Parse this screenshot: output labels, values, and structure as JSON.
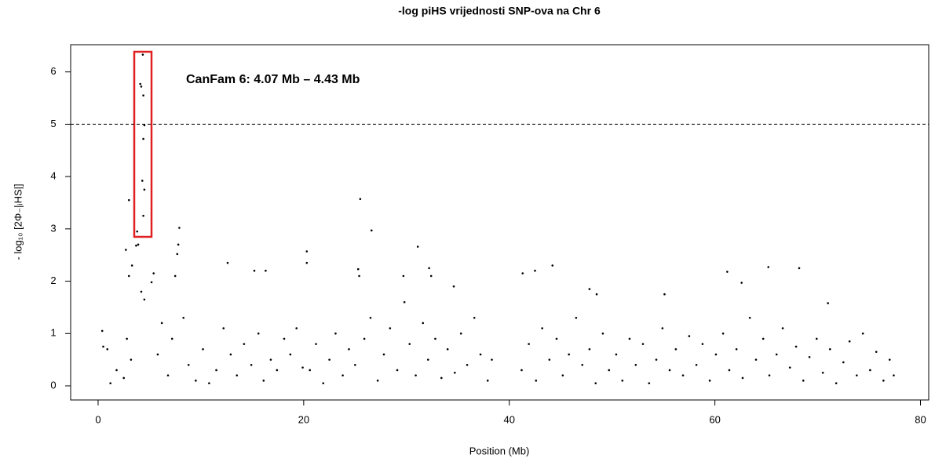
{
  "chart_data": {
    "type": "scatter",
    "title": "-log piHS vrijednosti SNP-ova na Chr 6",
    "xlabel": "Position (Mb)",
    "ylabel": "- log₁₀ [2Φ₋|ᵢHS|]",
    "annotation": "CanFam 6: 4.07 Mb – 4.43 Mb",
    "color": "#000000",
    "threshold": 5,
    "xlim": [
      -2.67,
      80.8
    ],
    "ylim": [
      -0.27,
      6.52
    ],
    "xticks": [
      0,
      20,
      40,
      60,
      80
    ],
    "yticks": [
      0,
      1,
      2,
      3,
      4,
      5,
      6
    ],
    "x": [
      4.35,
      4.1,
      4.2,
      4.4,
      4.5,
      4.4,
      4.3,
      4.5,
      4.4,
      3.0,
      3.8,
      3.7,
      3.9,
      2.7,
      3.3,
      3.0,
      7.9,
      7.8,
      7.7,
      25.5,
      26.6,
      31.1,
      20.3,
      20.3,
      12.6,
      15.2,
      16.3,
      32.2,
      32.4,
      25.3,
      25.4,
      41.3,
      42.5,
      44.2,
      61.2,
      65.2,
      68.2,
      62.6,
      5.4,
      5.2,
      7.5,
      4.2,
      4.5,
      29.7,
      34.6,
      47.8,
      55.1,
      48.5,
      71.0,
      0.4,
      0.5,
      0.9,
      1.2,
      1.8,
      2.5,
      2.8,
      3.2,
      5.8,
      6.2,
      6.8,
      7.2,
      8.3,
      8.8,
      9.5,
      10.2,
      10.8,
      11.5,
      12.2,
      12.9,
      13.5,
      14.2,
      14.9,
      15.6,
      16.1,
      16.8,
      17.4,
      18.1,
      18.7,
      19.3,
      19.9,
      20.6,
      21.2,
      21.9,
      22.5,
      23.1,
      23.8,
      24.4,
      25.0,
      25.9,
      26.5,
      27.2,
      27.8,
      28.4,
      29.1,
      29.8,
      30.3,
      30.9,
      31.6,
      32.1,
      32.8,
      33.4,
      34.0,
      34.7,
      35.3,
      35.9,
      36.6,
      37.2,
      37.9,
      38.3,
      41.2,
      41.9,
      42.6,
      43.2,
      43.9,
      44.6,
      45.2,
      45.8,
      46.5,
      47.1,
      47.8,
      48.4,
      49.1,
      49.7,
      50.4,
      51.0,
      51.7,
      52.3,
      53.0,
      53.6,
      54.3,
      54.9,
      55.6,
      56.2,
      56.9,
      57.5,
      58.2,
      58.8,
      59.5,
      60.1,
      60.8,
      61.4,
      62.1,
      62.7,
      63.4,
      64.0,
      64.7,
      65.3,
      66.0,
      66.6,
      67.3,
      67.9,
      68.6,
      69.2,
      69.9,
      70.5,
      71.2,
      71.8,
      72.5,
      73.1,
      73.8,
      74.4,
      75.1,
      75.7,
      76.4,
      77.0,
      77.4
    ],
    "y": [
      6.33,
      5.77,
      5.72,
      5.55,
      4.98,
      4.72,
      3.92,
      3.75,
      3.25,
      3.55,
      2.95,
      2.68,
      2.7,
      2.6,
      2.3,
      2.1,
      3.02,
      2.7,
      2.52,
      3.57,
      2.97,
      2.66,
      2.57,
      2.35,
      2.35,
      2.2,
      2.2,
      2.25,
      2.1,
      2.23,
      2.1,
      2.15,
      2.2,
      2.3,
      2.18,
      2.27,
      2.25,
      1.97,
      2.15,
      1.98,
      2.1,
      1.8,
      1.65,
      2.1,
      1.9,
      1.85,
      1.75,
      1.75,
      1.58,
      1.05,
      0.75,
      0.7,
      0.05,
      0.3,
      0.15,
      0.9,
      0.5,
      0.6,
      1.2,
      0.2,
      0.9,
      1.3,
      0.4,
      0.1,
      0.7,
      0.05,
      0.3,
      1.1,
      0.6,
      0.2,
      0.8,
      0.4,
      1.0,
      0.1,
      0.5,
      0.3,
      0.9,
      0.6,
      1.1,
      0.35,
      0.3,
      0.8,
      0.05,
      0.5,
      1.0,
      0.2,
      0.7,
      0.4,
      0.9,
      1.3,
      0.1,
      0.6,
      1.1,
      0.3,
      1.6,
      0.8,
      0.2,
      1.2,
      0.5,
      0.9,
      0.15,
      0.7,
      0.25,
      1.0,
      0.4,
      1.3,
      0.6,
      0.1,
      0.5,
      0.3,
      0.8,
      0.1,
      1.1,
      0.5,
      0.9,
      0.2,
      0.6,
      1.3,
      0.4,
      0.7,
      0.05,
      1.0,
      0.3,
      0.6,
      0.1,
      0.9,
      0.4,
      0.8,
      0.05,
      0.5,
      1.1,
      0.3,
      0.7,
      0.2,
      0.95,
      0.4,
      0.8,
      0.1,
      0.6,
      1.0,
      0.3,
      0.7,
      0.15,
      1.3,
      0.5,
      0.9,
      0.2,
      0.6,
      1.1,
      0.35,
      0.75,
      0.1,
      0.55,
      0.9,
      0.25,
      0.7,
      0.05,
      0.45,
      0.85,
      0.2,
      1.0,
      0.3,
      0.65,
      0.1,
      0.5,
      0.2
    ]
  }
}
